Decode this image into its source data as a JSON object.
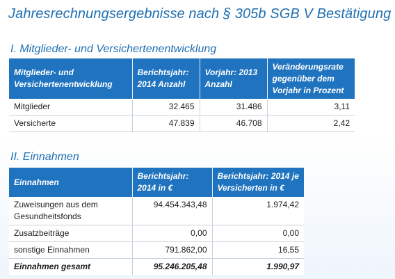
{
  "title": "Jahresrechnungsergebnisse nach § 305b SGB V  Bestätigung",
  "section1": {
    "title": "I. Mitglieder- und Versichertenentwicklung",
    "headers": [
      "Mitglieder- und Versichertenentwicklung",
      "Berichtsjahr: 2014 Anzahl",
      "Vorjahr: 2013 Anzahl",
      "Veränderungsrate gegenüber dem Vorjahr in Prozent"
    ],
    "rows": [
      [
        "Mitglieder",
        "32.465",
        "31.486",
        "3,11"
      ],
      [
        "Versicherte",
        "47.839",
        "46.708",
        "2,42"
      ]
    ]
  },
  "section2": {
    "title": "II. Einnahmen",
    "headers": [
      "Einnahmen",
      "Berichtsjahr: 2014  in €",
      "Berichtsjahr: 2014 je Versicherten in €"
    ],
    "rows": [
      [
        "Zuweisungen aus dem Gesundheitsfonds",
        "94.454.343,48",
        "1.974,42"
      ],
      [
        "Zusatzbeiträge",
        "0,00",
        "0,00"
      ],
      [
        "sonstige Einnahmen",
        "791.862,00",
        "16,55"
      ]
    ],
    "total": [
      "Einnahmen gesamt",
      "95.246.205,48",
      "1.990,97"
    ]
  }
}
